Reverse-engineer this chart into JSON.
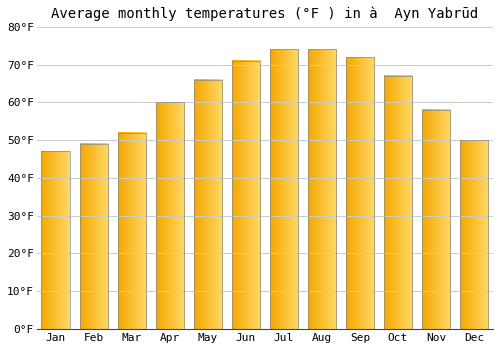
{
  "title": "Average monthly temperatures (°F ) in à  Ayn Yabrūd",
  "months": [
    "Jan",
    "Feb",
    "Mar",
    "Apr",
    "May",
    "Jun",
    "Jul",
    "Aug",
    "Sep",
    "Oct",
    "Nov",
    "Dec"
  ],
  "values": [
    47,
    49,
    52,
    60,
    66,
    71,
    74,
    74,
    72,
    67,
    58,
    50
  ],
  "bar_color_left": "#F5A800",
  "bar_color_right": "#FFD966",
  "bar_edge_color": "#888888",
  "ylim": [
    0,
    80
  ],
  "yticks": [
    0,
    10,
    20,
    30,
    40,
    50,
    60,
    70,
    80
  ],
  "ytick_labels": [
    "0°F",
    "10°F",
    "20°F",
    "30°F",
    "40°F",
    "50°F",
    "60°F",
    "70°F",
    "80°F"
  ],
  "bg_color": "#FFFFFF",
  "grid_color": "#CCCCCC",
  "title_fontsize": 10,
  "tick_fontsize": 8,
  "bar_width": 0.75
}
